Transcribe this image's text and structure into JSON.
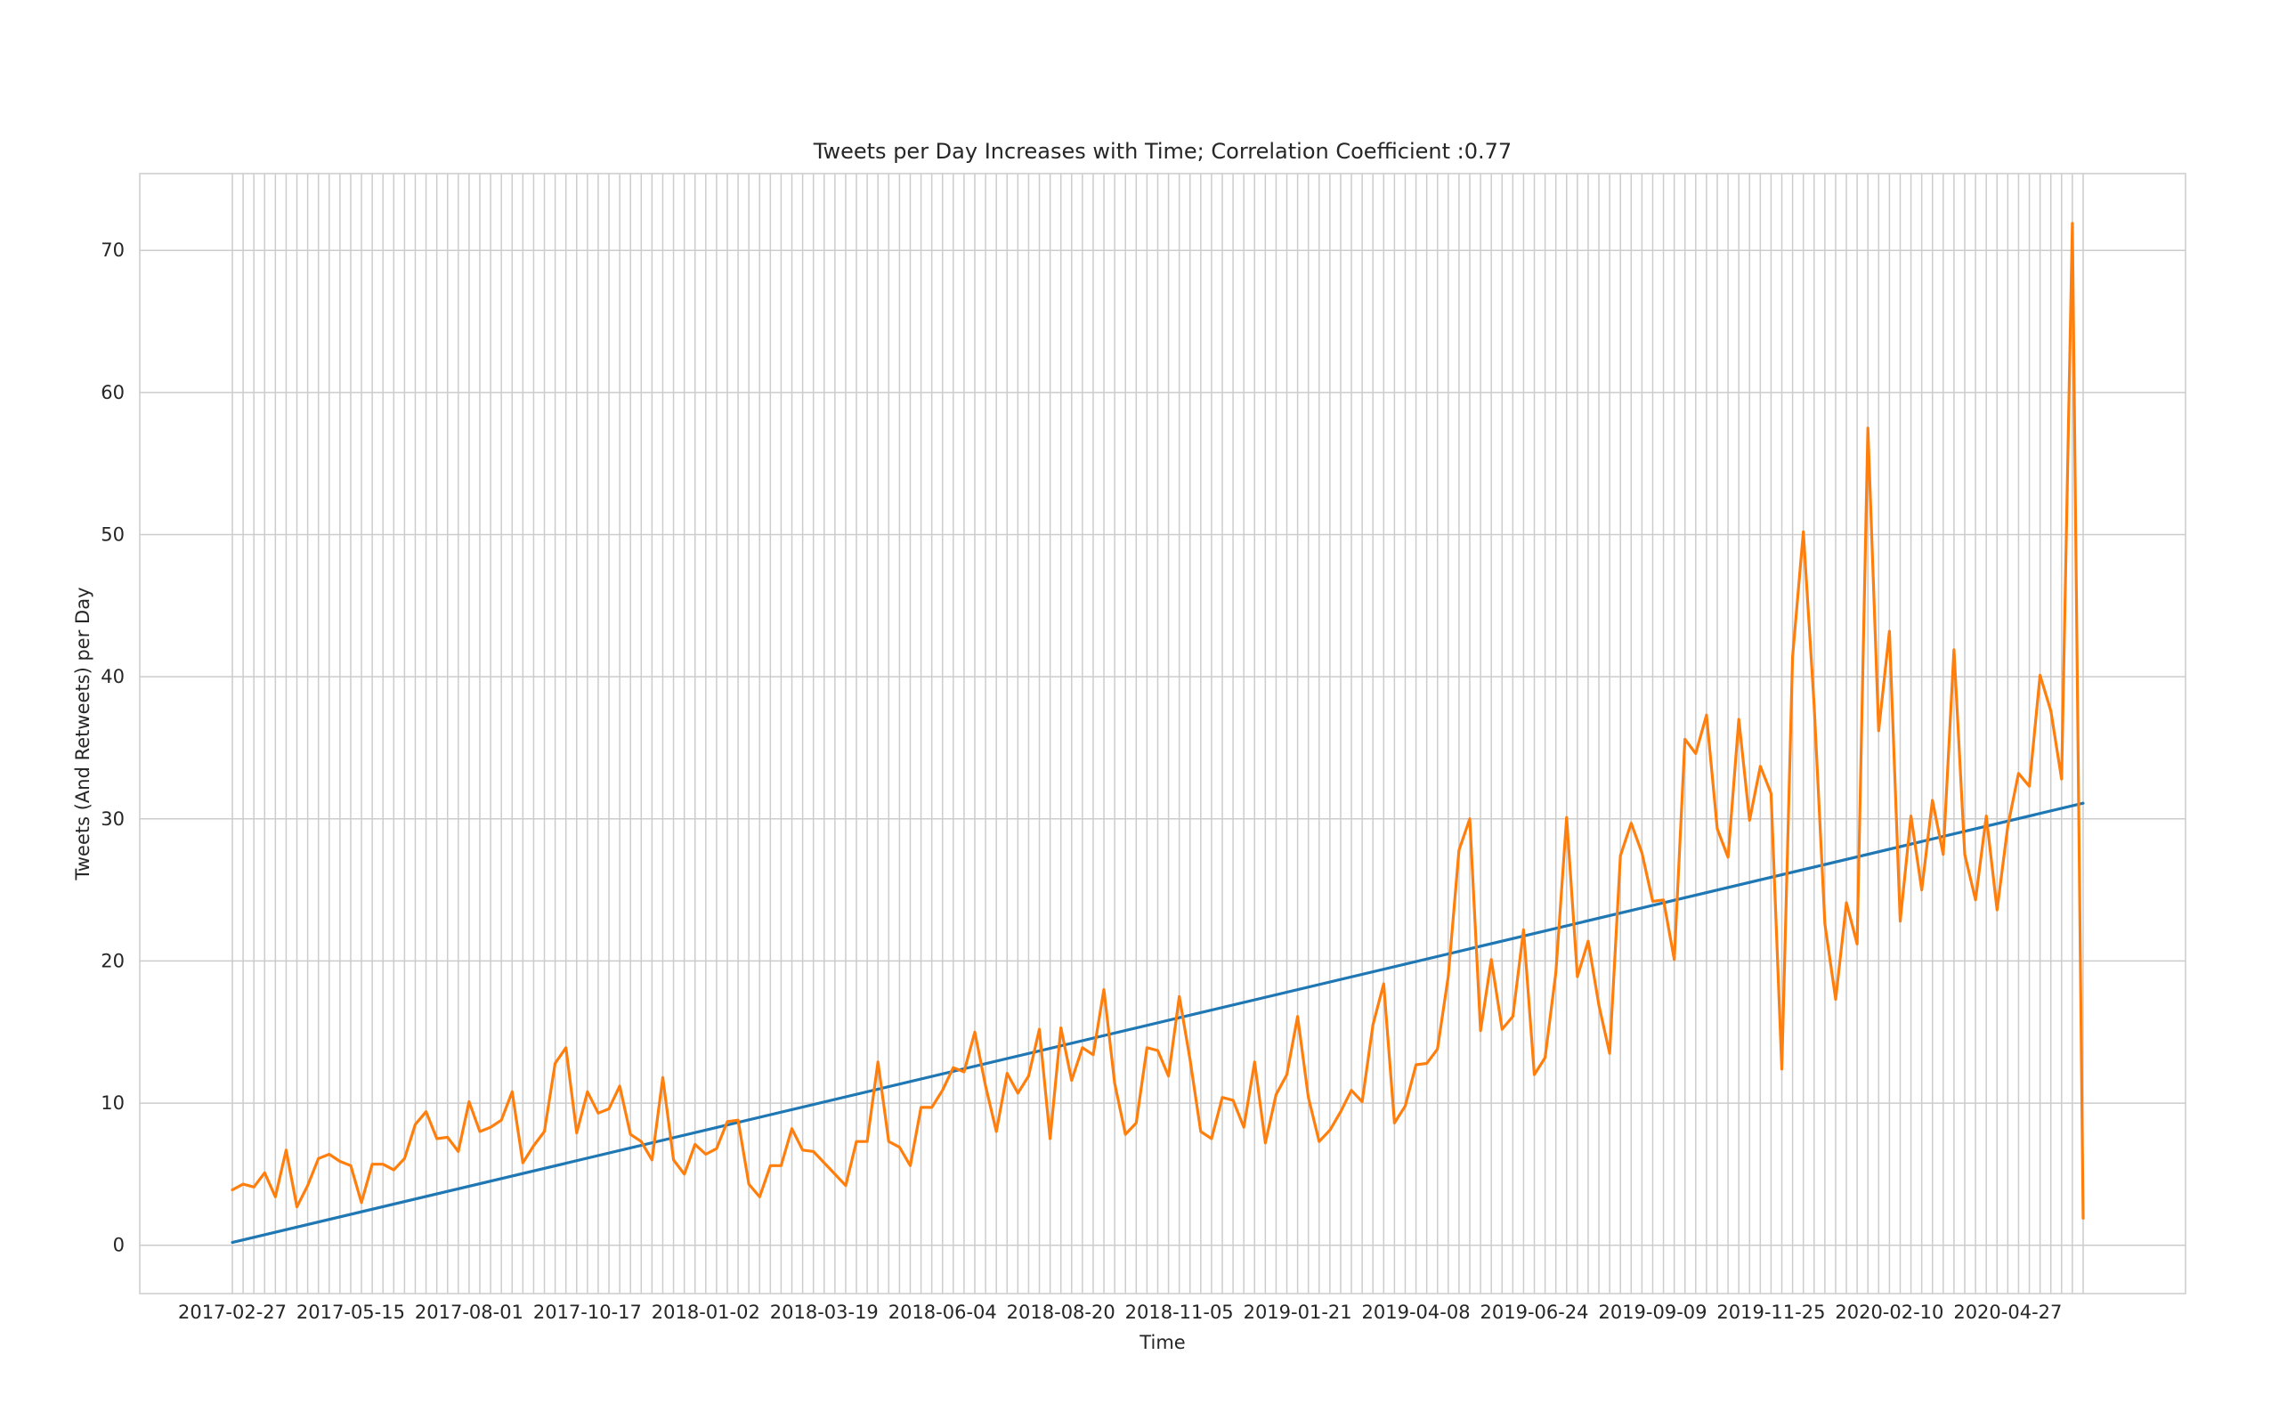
{
  "chart_data": {
    "type": "line",
    "title": "Tweets per Day Increases with Time; Correlation Coefficient :0.77",
    "xlabel": "Time",
    "ylabel": "Tweets (And Retweets) per Day",
    "ylim": [
      -3.4,
      75.4
    ],
    "yticks": [
      0,
      10,
      20,
      30,
      40,
      50,
      60,
      70
    ],
    "x_start": "2017-02-27",
    "x_step_days": 7,
    "x_tick_every": 11,
    "xticks": [
      "2017-02-27",
      "2017-05-15",
      "2017-08-01",
      "2017-10-17",
      "2018-01-02",
      "2018-03-19",
      "2018-06-04",
      "2018-08-20",
      "2018-11-05",
      "2019-01-21",
      "2019-04-08",
      "2019-06-24",
      "2019-09-09",
      "2019-11-25",
      "2020-02-10",
      "2020-04-27"
    ],
    "grid": true,
    "colors": {
      "actual": "#ff7f0e",
      "trend": "#1f77b4",
      "grid": "#cccccc"
    },
    "series": [
      {
        "name": "",
        "color": "#ff7f0e",
        "values": [
          3.9,
          4.3,
          4.1,
          5.1,
          3.4,
          6.7,
          2.7,
          4.2,
          6.1,
          6.4,
          5.9,
          5.6,
          3.0,
          5.7,
          5.7,
          5.3,
          6.1,
          8.5,
          9.4,
          7.5,
          7.6,
          6.6,
          10.1,
          8.0,
          8.3,
          8.8,
          10.8,
          5.8,
          7.0,
          8.0,
          12.8,
          13.9,
          7.9,
          10.8,
          9.3,
          9.6,
          11.2,
          7.8,
          7.3,
          6.0,
          11.8,
          6.0,
          5.0,
          7.1,
          6.4,
          6.8,
          8.7,
          8.8,
          4.3,
          3.4,
          5.6,
          5.6,
          8.2,
          6.7,
          6.6,
          5.8,
          5.0,
          4.2,
          7.3,
          7.3,
          12.9,
          7.3,
          6.9,
          5.6,
          9.7,
          9.7,
          10.9,
          12.5,
          12.2,
          15.0,
          11.2,
          8.0,
          12.1,
          10.7,
          11.9,
          15.2,
          7.5,
          15.3,
          11.6,
          13.9,
          13.4,
          18.0,
          11.4,
          7.8,
          8.6,
          13.9,
          13.7,
          11.9,
          17.5,
          13.1,
          8.0,
          7.5,
          10.4,
          10.2,
          8.3,
          12.9,
          7.2,
          10.6,
          12.0,
          16.1,
          10.4,
          7.3,
          8.1,
          9.4,
          10.9,
          10.1,
          15.5,
          18.4,
          8.6,
          9.8,
          12.7,
          12.8,
          13.8,
          18.9,
          27.8,
          30.0,
          15.1,
          20.1,
          15.2,
          16.1,
          22.2,
          12.0,
          13.2,
          19.2,
          30.1,
          18.9,
          21.4,
          16.9,
          13.5,
          27.4,
          29.7,
          27.6,
          24.2,
          24.3,
          20.1,
          35.6,
          34.6,
          37.3,
          29.3,
          27.3,
          37.0,
          29.9,
          33.7,
          31.8,
          12.4,
          41.4,
          50.2,
          38.0,
          22.6,
          17.3,
          24.1,
          21.2,
          57.5,
          36.2,
          43.2,
          22.8,
          30.2,
          25.0,
          31.3,
          27.5,
          41.9,
          27.5,
          24.3,
          30.2,
          23.6,
          29.5,
          33.2,
          32.3,
          40.1,
          37.6,
          32.8,
          71.9,
          1.9
        ]
      },
      {
        "name": "",
        "color": "#1f77b4",
        "line_from": 0.2,
        "line_to": 31.1
      }
    ]
  }
}
